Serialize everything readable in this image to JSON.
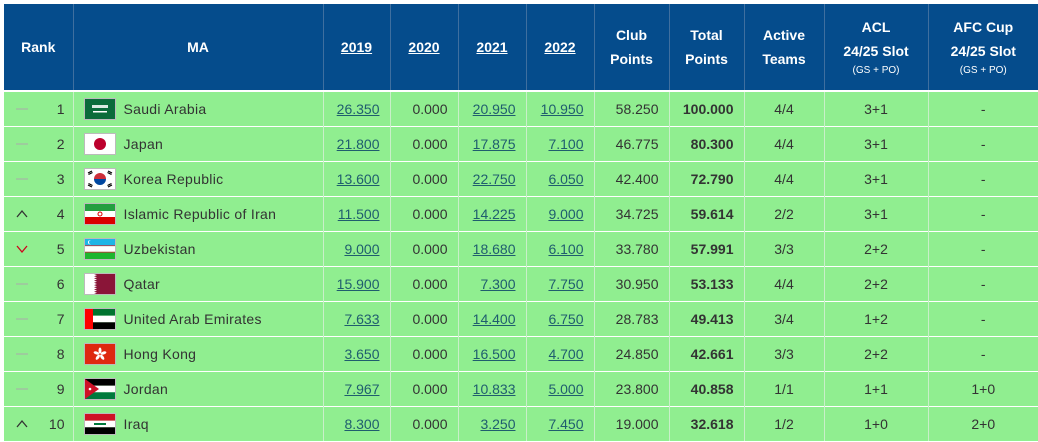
{
  "header": {
    "rank": "Rank",
    "ma": "MA",
    "y2019": "2019",
    "y2020": "2020",
    "y2021": "2021",
    "y2022": "2022",
    "club_points_1": "Club",
    "club_points_2": "Points",
    "total_points_1": "Total",
    "total_points_2": "Points",
    "active_teams_1": "Active",
    "active_teams_2": "Teams",
    "acl_1": "ACL",
    "acl_2": "24/25 Slot",
    "acl_sub": "(GS + PO)",
    "afc_1": "AFC Cup",
    "afc_2": "24/25 Slot",
    "afc_sub": "(GS + PO)"
  },
  "rows": [
    {
      "trend": "same",
      "rank": "1",
      "flag": "saudi-arabia-flag",
      "country": "Saudi Arabia",
      "y2019": "26.350",
      "y2020": "0.000",
      "y2021": "20.950",
      "y2022": "10.950",
      "club": "58.250",
      "total": "100.000",
      "active": "4/4",
      "acl": "3+1",
      "afc": "-"
    },
    {
      "trend": "same",
      "rank": "2",
      "flag": "japan-flag",
      "country": "Japan",
      "y2019": "21.800",
      "y2020": "0.000",
      "y2021": "17.875",
      "y2022": "7.100",
      "club": "46.775",
      "total": "80.300",
      "active": "4/4",
      "acl": "3+1",
      "afc": "-"
    },
    {
      "trend": "same",
      "rank": "3",
      "flag": "korea-republic-flag",
      "country": "Korea Republic",
      "y2019": "13.600",
      "y2020": "0.000",
      "y2021": "22.750",
      "y2022": "6.050",
      "club": "42.400",
      "total": "72.790",
      "active": "4/4",
      "acl": "3+1",
      "afc": "-"
    },
    {
      "trend": "up",
      "rank": "4",
      "flag": "iran-flag",
      "country": "Islamic Republic of Iran",
      "y2019": "11.500",
      "y2020": "0.000",
      "y2021": "14.225",
      "y2022": "9.000",
      "club": "34.725",
      "total": "59.614",
      "active": "2/2",
      "acl": "3+1",
      "afc": "-"
    },
    {
      "trend": "down",
      "rank": "5",
      "flag": "uzbekistan-flag",
      "country": "Uzbekistan",
      "y2019": "9.000",
      "y2020": "0.000",
      "y2021": "18.680",
      "y2022": "6.100",
      "club": "33.780",
      "total": "57.991",
      "active": "3/3",
      "acl": "2+2",
      "afc": "-"
    },
    {
      "trend": "same",
      "rank": "6",
      "flag": "qatar-flag",
      "country": "Qatar",
      "y2019": "15.900",
      "y2020": "0.000",
      "y2021": "7.300",
      "y2022": "7.750",
      "club": "30.950",
      "total": "53.133",
      "active": "4/4",
      "acl": "2+2",
      "afc": "-"
    },
    {
      "trend": "same",
      "rank": "7",
      "flag": "uae-flag",
      "country": "United Arab Emirates",
      "y2019": "7.633",
      "y2020": "0.000",
      "y2021": "14.400",
      "y2022": "6.750",
      "club": "28.783",
      "total": "49.413",
      "active": "3/4",
      "acl": "1+2",
      "afc": "-"
    },
    {
      "trend": "same",
      "rank": "8",
      "flag": "hong-kong-flag",
      "country": "Hong Kong",
      "y2019": "3.650",
      "y2020": "0.000",
      "y2021": "16.500",
      "y2022": "4.700",
      "club": "24.850",
      "total": "42.661",
      "active": "3/3",
      "acl": "2+2",
      "afc": "-"
    },
    {
      "trend": "same",
      "rank": "9",
      "flag": "jordan-flag",
      "country": "Jordan",
      "y2019": "7.967",
      "y2020": "0.000",
      "y2021": "10.833",
      "y2022": "5.000",
      "club": "23.800",
      "total": "40.858",
      "active": "1/1",
      "acl": "1+1",
      "afc": "1+0"
    },
    {
      "trend": "up",
      "rank": "10",
      "flag": "iraq-flag",
      "country": "Iraq",
      "y2019": "8.300",
      "y2020": "0.000",
      "y2021": "3.250",
      "y2022": "7.450",
      "club": "19.000",
      "total": "32.618",
      "active": "1/2",
      "acl": "1+0",
      "afc": "2+0"
    }
  ],
  "colors": {
    "header_bg": "#054c8c",
    "row_bg": "#90ee90",
    "link": "#1f5d6e",
    "trend_up": "#333333",
    "trend_down": "#d0021b",
    "trend_same": "#aaaaaa"
  }
}
